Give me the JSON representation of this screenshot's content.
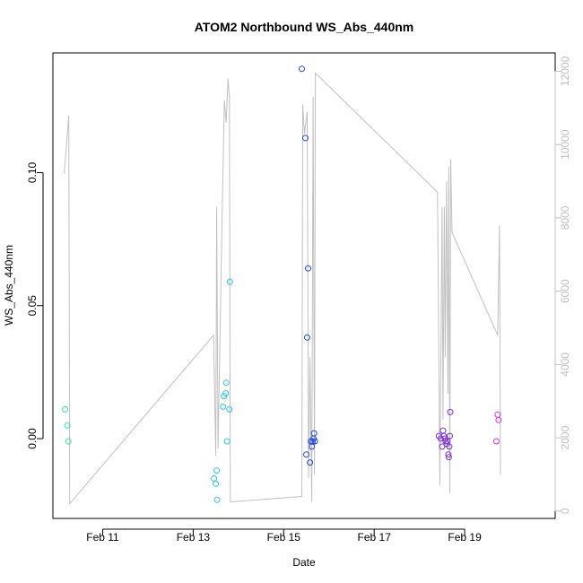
{
  "chart_data": {
    "type": "scatter",
    "title": "ATOM2 Northbound WS_Abs_440nm",
    "xlabel": "Date",
    "ylabel": "WS_Abs_440nm",
    "x_unit": "days (February)",
    "xlim": [
      9.9,
      21.0
    ],
    "ylim": [
      -0.03,
      0.145
    ],
    "y2lim": [
      -200,
      12500
    ],
    "x_ticks": [
      {
        "value": 11,
        "label": "Feb 11"
      },
      {
        "value": 13,
        "label": "Feb 13"
      },
      {
        "value": 15,
        "label": "Feb 15"
      },
      {
        "value": 17,
        "label": "Feb 17"
      },
      {
        "value": 19,
        "label": "Feb 19"
      }
    ],
    "y_ticks": [
      {
        "value": 0.0,
        "label": "0.00"
      },
      {
        "value": 0.05,
        "label": "0.05"
      },
      {
        "value": 0.1,
        "label": "0.10"
      }
    ],
    "y2_ticks": [
      {
        "value": 0,
        "label": "0"
      },
      {
        "value": 2000,
        "label": "2000"
      },
      {
        "value": 4000,
        "label": "4000"
      },
      {
        "value": 6000,
        "label": "6000"
      },
      {
        "value": 8000,
        "label": "8000"
      },
      {
        "value": 10000,
        "label": "10000"
      },
      {
        "value": 12000,
        "label": "12000"
      }
    ],
    "points": [
      {
        "x": 10.17,
        "y": 0.011,
        "color": "#2ee6b0"
      },
      {
        "x": 10.22,
        "y": 0.005,
        "color": "#2ee6b0"
      },
      {
        "x": 10.24,
        "y": -0.001,
        "color": "#2ee6b0"
      },
      {
        "x": 13.46,
        "y": -0.015,
        "color": "#26c8e6"
      },
      {
        "x": 13.5,
        "y": -0.017,
        "color": "#26c8e6"
      },
      {
        "x": 13.52,
        "y": -0.012,
        "color": "#26c8e6"
      },
      {
        "x": 13.53,
        "y": -0.023,
        "color": "#26c8e6"
      },
      {
        "x": 13.66,
        "y": 0.012,
        "color": "#26c8e6"
      },
      {
        "x": 13.68,
        "y": 0.016,
        "color": "#26c8e6"
      },
      {
        "x": 13.72,
        "y": 0.017,
        "color": "#26c8e6"
      },
      {
        "x": 13.73,
        "y": 0.021,
        "color": "#26c8e6"
      },
      {
        "x": 13.75,
        "y": -0.001,
        "color": "#26c8e6"
      },
      {
        "x": 13.8,
        "y": 0.011,
        "color": "#26c8e6"
      },
      {
        "x": 13.81,
        "y": 0.059,
        "color": "#26c8e6"
      },
      {
        "x": 15.4,
        "y": 0.139,
        "color": "#2146e0"
      },
      {
        "x": 15.48,
        "y": 0.113,
        "color": "#2146e0"
      },
      {
        "x": 15.5,
        "y": -0.006,
        "color": "#2146e0"
      },
      {
        "x": 15.52,
        "y": 0.038,
        "color": "#2146e0"
      },
      {
        "x": 15.54,
        "y": 0.064,
        "color": "#2146e0"
      },
      {
        "x": 15.58,
        "y": -0.009,
        "color": "#2146e0"
      },
      {
        "x": 15.6,
        "y": -0.001,
        "color": "#2146e0"
      },
      {
        "x": 15.62,
        "y": -0.003,
        "color": "#2146e0"
      },
      {
        "x": 15.64,
        "y": -0.001,
        "color": "#2146e0"
      },
      {
        "x": 15.66,
        "y": 0.0,
        "color": "#2146e0"
      },
      {
        "x": 15.67,
        "y": 0.002,
        "color": "#2146e0"
      },
      {
        "x": 15.69,
        "y": -0.001,
        "color": "#2146e0"
      },
      {
        "x": 18.43,
        "y": 0.001,
        "color": "#7a2ee0"
      },
      {
        "x": 18.47,
        "y": 0.0,
        "color": "#7a2ee0"
      },
      {
        "x": 18.5,
        "y": -0.003,
        "color": "#7a2ee0"
      },
      {
        "x": 18.52,
        "y": 0.003,
        "color": "#7a2ee0"
      },
      {
        "x": 18.54,
        "y": 0.001,
        "color": "#7a2ee0"
      },
      {
        "x": 18.56,
        "y": 0.0,
        "color": "#7a2ee0"
      },
      {
        "x": 18.58,
        "y": -0.001,
        "color": "#7a2ee0"
      },
      {
        "x": 18.6,
        "y": -0.002,
        "color": "#7a2ee0"
      },
      {
        "x": 18.62,
        "y": -0.001,
        "color": "#7a2ee0"
      },
      {
        "x": 18.64,
        "y": -0.006,
        "color": "#7a2ee0"
      },
      {
        "x": 18.65,
        "y": -0.007,
        "color": "#7a2ee0"
      },
      {
        "x": 18.66,
        "y": -0.003,
        "color": "#7a2ee0"
      },
      {
        "x": 18.67,
        "y": 0.001,
        "color": "#7a2ee0"
      },
      {
        "x": 18.68,
        "y": 0.01,
        "color": "#7a2ee0"
      },
      {
        "x": 19.7,
        "y": -0.001,
        "color": "#e02ee0"
      },
      {
        "x": 19.73,
        "y": 0.009,
        "color": "#e02ee0"
      },
      {
        "x": 19.75,
        "y": 0.007,
        "color": "#e02ee0"
      }
    ],
    "line_series": {
      "axis": "right",
      "color": "#c0c0c0",
      "points": [
        [
          10.15,
          9200
        ],
        [
          10.25,
          10800
        ],
        [
          10.27,
          200
        ],
        [
          13.45,
          4800
        ],
        [
          13.5,
          1500
        ],
        [
          13.52,
          8300
        ],
        [
          13.55,
          1700
        ],
        [
          13.65,
          8800
        ],
        [
          13.69,
          11200
        ],
        [
          13.73,
          10600
        ],
        [
          13.77,
          11800
        ],
        [
          13.8,
          11300
        ],
        [
          13.82,
          250
        ],
        [
          15.4,
          400
        ],
        [
          15.42,
          11100
        ],
        [
          15.46,
          10300
        ],
        [
          15.52,
          10900
        ],
        [
          15.55,
          900
        ],
        [
          15.58,
          4200
        ],
        [
          15.6,
          2200
        ],
        [
          15.62,
          250
        ],
        [
          15.65,
          11300
        ],
        [
          15.68,
          1000
        ],
        [
          15.7,
          11950
        ],
        [
          18.4,
          8700
        ],
        [
          18.45,
          700
        ],
        [
          18.5,
          8300
        ],
        [
          18.52,
          2500
        ],
        [
          18.55,
          8300
        ],
        [
          18.57,
          4200
        ],
        [
          18.6,
          9000
        ],
        [
          18.63,
          3200
        ],
        [
          18.65,
          9400
        ],
        [
          18.67,
          500
        ],
        [
          18.69,
          9600
        ],
        [
          18.72,
          7600
        ],
        [
          19.73,
          4800
        ],
        [
          19.77,
          7800
        ],
        [
          19.79,
          1000
        ]
      ]
    },
    "grid": false,
    "legend": "none"
  }
}
